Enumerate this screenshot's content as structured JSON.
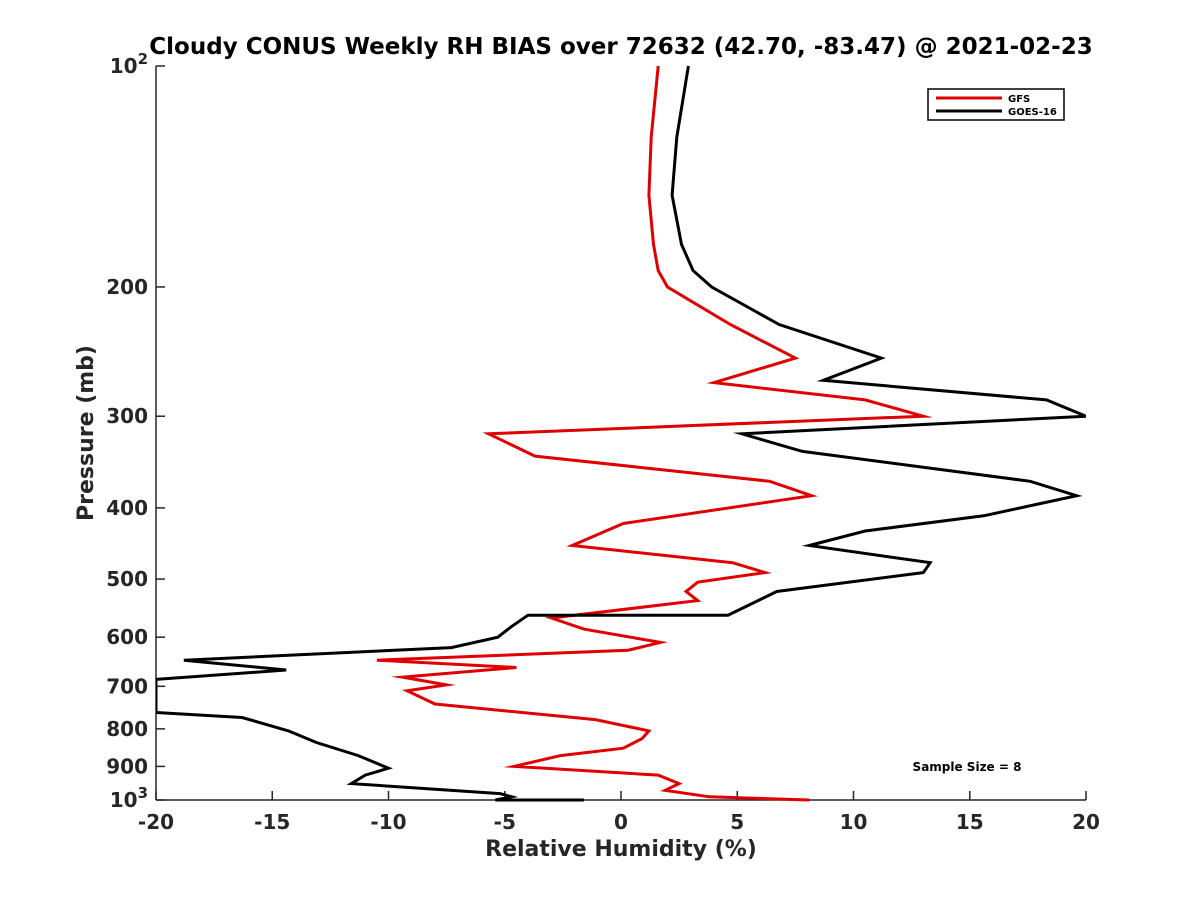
{
  "chart_data": {
    "type": "line",
    "title": "Cloudy CONUS Weekly RH BIAS over 72632 (42.70, -83.47) @ 2021-02-23",
    "xlabel": "Relative Humidity (%)",
    "ylabel": "Pressure (mb)",
    "xlim": [
      -20,
      20
    ],
    "ylim": [
      100,
      1000
    ],
    "yscale": "log",
    "y_reversed": true,
    "grid": false,
    "legend_position": "top-right",
    "x_ticks": [
      -20,
      -15,
      -10,
      -5,
      0,
      5,
      10,
      15,
      20
    ],
    "x_tick_labels": [
      "-20",
      "-15",
      "-10",
      "-5",
      "0",
      "5",
      "10",
      "15",
      "20"
    ],
    "y_ticks": [
      100,
      200,
      300,
      400,
      500,
      600,
      700,
      800,
      900,
      1000
    ],
    "y_tick_labels": [
      {
        "base": "10",
        "exp": "2"
      },
      {
        "base": "200"
      },
      {
        "base": "300"
      },
      {
        "base": "400"
      },
      {
        "base": "500"
      },
      {
        "base": "600"
      },
      {
        "base": "700"
      },
      {
        "base": "800"
      },
      {
        "base": "900"
      },
      {
        "base": "10",
        "exp": "3"
      }
    ],
    "annotation": "Sample Size = 8",
    "series": [
      {
        "name": "GFS",
        "color": "#e00000",
        "points": [
          [
            1.6,
            100
          ],
          [
            1.3,
            125
          ],
          [
            1.2,
            150
          ],
          [
            1.4,
            175
          ],
          [
            1.6,
            190
          ],
          [
            2.0,
            200
          ],
          [
            4.7,
            225
          ],
          [
            7.5,
            250
          ],
          [
            4.0,
            270
          ],
          [
            10.5,
            285
          ],
          [
            13.0,
            300
          ],
          [
            -5.7,
            317
          ],
          [
            -3.7,
            340
          ],
          [
            6.4,
            368
          ],
          [
            8.2,
            385
          ],
          [
            0.1,
            420
          ],
          [
            -2.1,
            450
          ],
          [
            4.8,
            475
          ],
          [
            6.2,
            490
          ],
          [
            3.3,
            505
          ],
          [
            2.8,
            520
          ],
          [
            3.3,
            535
          ],
          [
            -3.0,
            565
          ],
          [
            -1.6,
            585
          ],
          [
            1.7,
            610
          ],
          [
            0.3,
            625
          ],
          [
            -10.5,
            645
          ],
          [
            -4.5,
            660
          ],
          [
            -9.4,
            680
          ],
          [
            -7.5,
            697
          ],
          [
            -9.2,
            710
          ],
          [
            -8.0,
            740
          ],
          [
            -1.1,
            777
          ],
          [
            1.2,
            805
          ],
          [
            0.9,
            825
          ],
          [
            0.1,
            850
          ],
          [
            -2.6,
            870
          ],
          [
            -4.6,
            900
          ],
          [
            1.6,
            925
          ],
          [
            2.5,
            950
          ],
          [
            1.9,
            970
          ],
          [
            3.8,
            990
          ],
          [
            8.1,
            1000
          ]
        ]
      },
      {
        "name": "GOES-16",
        "color": "#000000",
        "points": [
          [
            2.9,
            100
          ],
          [
            2.4,
            125
          ],
          [
            2.2,
            150
          ],
          [
            2.6,
            175
          ],
          [
            3.1,
            190
          ],
          [
            3.9,
            200
          ],
          [
            6.8,
            225
          ],
          [
            11.2,
            250
          ],
          [
            8.7,
            268
          ],
          [
            18.3,
            285
          ],
          [
            20.0,
            300
          ],
          [
            5.2,
            317
          ],
          [
            7.8,
            335
          ],
          [
            17.6,
            368
          ],
          [
            19.6,
            385
          ],
          [
            15.6,
            410
          ],
          [
            10.5,
            430
          ],
          [
            8.1,
            450
          ],
          [
            13.3,
            475
          ],
          [
            13.0,
            490
          ],
          [
            6.7,
            520
          ],
          [
            4.6,
            560
          ],
          [
            -4.0,
            560
          ],
          [
            -4.7,
            580
          ],
          [
            -5.3,
            600
          ],
          [
            -7.3,
            620
          ],
          [
            -18.8,
            645
          ],
          [
            -14.4,
            665
          ],
          [
            -20.0,
            685
          ],
          [
            -20.0,
            760
          ],
          [
            -16.3,
            772
          ],
          [
            -14.3,
            805
          ],
          [
            -13.1,
            835
          ],
          [
            -11.3,
            870
          ],
          [
            -10.0,
            905
          ],
          [
            -11.0,
            925
          ],
          [
            -11.6,
            950
          ],
          [
            -5.2,
            980
          ],
          [
            -4.7,
            990
          ],
          [
            -5.4,
            1000
          ],
          [
            -3.0,
            1000
          ],
          [
            -1.6,
            1000
          ]
        ]
      }
    ]
  }
}
